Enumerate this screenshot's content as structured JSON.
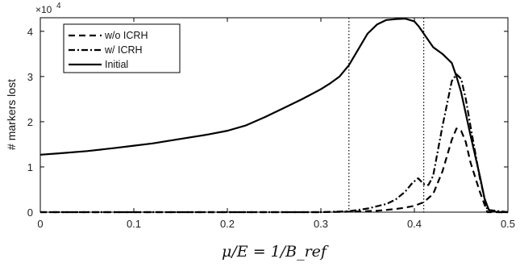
{
  "chart_data": {
    "type": "line",
    "title": "",
    "xlabel": "μ/E = 1/B_ref",
    "ylabel": "# markers lost",
    "y_scale_label": "×10",
    "y_scale_exponent": "4",
    "xlim": [
      0,
      0.5
    ],
    "ylim": [
      0,
      4.3
    ],
    "xticks": [
      "0",
      "0.1",
      "0.2",
      "0.3",
      "0.4",
      "0.5"
    ],
    "yticks": [
      "0",
      "1",
      "2",
      "3",
      "4"
    ],
    "legend_position": "top-left",
    "vertical_reference_lines": [
      0.33,
      0.41
    ],
    "series": [
      {
        "name": "w/o ICRH",
        "style": "dashed",
        "x": [
          0,
          0.1,
          0.2,
          0.3,
          0.33,
          0.36,
          0.38,
          0.39,
          0.4,
          0.41,
          0.42,
          0.43,
          0.44,
          0.445,
          0.45,
          0.455,
          0.46,
          0.47,
          0.478,
          0.5
        ],
        "y": [
          0,
          0,
          0,
          0,
          0.01,
          0.03,
          0.07,
          0.1,
          0.14,
          0.22,
          0.4,
          0.9,
          1.6,
          1.85,
          1.8,
          1.55,
          1.1,
          0.45,
          0,
          0
        ]
      },
      {
        "name": "w/ ICRH",
        "style": "dashdot",
        "x": [
          0,
          0.1,
          0.2,
          0.3,
          0.33,
          0.35,
          0.37,
          0.38,
          0.39,
          0.398,
          0.404,
          0.41,
          0.415,
          0.42,
          0.43,
          0.44,
          0.445,
          0.45,
          0.455,
          0.46,
          0.47,
          0.478,
          0.5
        ],
        "y": [
          0,
          0,
          0,
          0,
          0.02,
          0.08,
          0.18,
          0.28,
          0.45,
          0.65,
          0.75,
          0.62,
          0.6,
          0.8,
          1.9,
          2.9,
          3.05,
          2.95,
          2.5,
          1.9,
          0.75,
          0.05,
          0
        ]
      },
      {
        "name": "Initial",
        "style": "solid",
        "x": [
          0,
          0.02,
          0.05,
          0.08,
          0.1,
          0.12,
          0.15,
          0.18,
          0.2,
          0.22,
          0.24,
          0.26,
          0.28,
          0.3,
          0.31,
          0.32,
          0.33,
          0.34,
          0.35,
          0.36,
          0.37,
          0.38,
          0.39,
          0.4,
          0.405,
          0.41,
          0.415,
          0.42,
          0.43,
          0.44,
          0.445,
          0.45,
          0.46,
          0.47,
          0.475,
          0.48,
          0.49,
          0.5
        ],
        "y": [
          1.27,
          1.3,
          1.35,
          1.42,
          1.47,
          1.52,
          1.62,
          1.72,
          1.8,
          1.92,
          2.1,
          2.3,
          2.5,
          2.72,
          2.85,
          3.0,
          3.25,
          3.6,
          3.95,
          4.15,
          4.25,
          4.27,
          4.28,
          4.22,
          4.1,
          3.95,
          3.8,
          3.65,
          3.5,
          3.3,
          3.0,
          2.65,
          1.7,
          0.8,
          0.3,
          0.03,
          0,
          0
        ]
      }
    ]
  }
}
